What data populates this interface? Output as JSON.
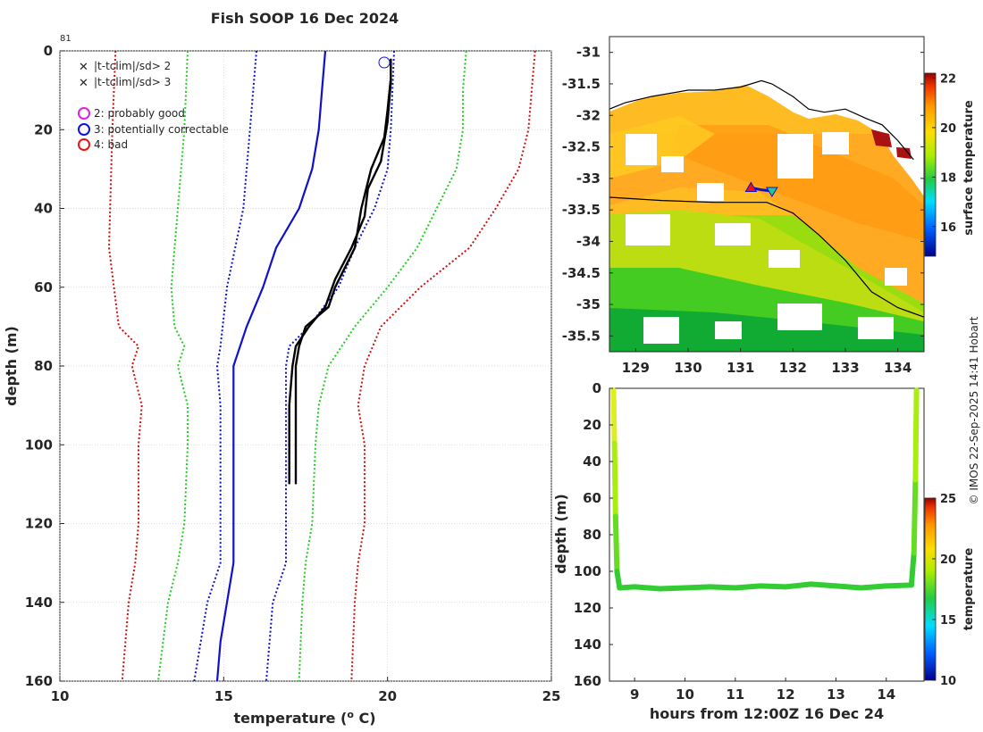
{
  "figure": {
    "title": "Fish SOOP 16 Dec 2024",
    "profile_count": "81",
    "credit": "© IMOS 22-Sep-2025 14:41 Hobart"
  },
  "chart_data": [
    {
      "id": "profile",
      "type": "line",
      "title": "Fish SOOP 16 Dec 2024",
      "xlabel": "temperature (",
      "xlabel_sup": "o",
      "xlabel_end": " C)",
      "ylabel": "depth (m)",
      "xlim": [
        10,
        25
      ],
      "ylim": [
        160,
        0
      ],
      "xticks": [
        "10",
        "15",
        "20",
        "25"
      ],
      "yticks": [
        "0",
        "20",
        "40",
        "60",
        "80",
        "100",
        "120",
        "140",
        "160"
      ],
      "xtick_values": [
        10,
        15,
        20,
        25
      ],
      "ytick_values": [
        0,
        20,
        40,
        60,
        80,
        100,
        120,
        140,
        160
      ],
      "grid": true,
      "legend": [
        {
          "label": "|t-tclim|/sd> 2",
          "marker": "x",
          "color": "#22dd22"
        },
        {
          "label": "|t-tclim|/sd> 3",
          "marker": "x",
          "color": "#dd1111"
        },
        {
          "label": "2: probably good",
          "marker": "o",
          "color": "#dd22dd"
        },
        {
          "label": "3: potentially correctable",
          "marker": "o",
          "color": "#1111dd"
        },
        {
          "label": "4: bad",
          "marker": "o",
          "color": "#ee1111"
        }
      ],
      "series": [
        {
          "name": "clim -3sd",
          "color": "#cc1111",
          "style": "dotted",
          "points": [
            [
              11.7,
              0
            ],
            [
              11.6,
              20
            ],
            [
              11.5,
              50
            ],
            [
              11.8,
              70
            ],
            [
              12.4,
              75
            ],
            [
              12.2,
              80
            ],
            [
              12.5,
              90
            ],
            [
              12.4,
              100
            ],
            [
              12.4,
              120
            ],
            [
              12.3,
              130
            ],
            [
              12.1,
              140
            ],
            [
              11.9,
              160
            ]
          ]
        },
        {
          "name": "clim -2sd",
          "color": "#22cc22",
          "style": "dotted",
          "points": [
            [
              13.9,
              0
            ],
            [
              13.8,
              20
            ],
            [
              13.6,
              40
            ],
            [
              13.4,
              60
            ],
            [
              13.5,
              70
            ],
            [
              13.8,
              75
            ],
            [
              13.6,
              80
            ],
            [
              13.9,
              90
            ],
            [
              13.9,
              100
            ],
            [
              13.8,
              120
            ],
            [
              13.6,
              130
            ],
            [
              13.3,
              140
            ],
            [
              13.0,
              160
            ]
          ]
        },
        {
          "name": "clim -1sd",
          "color": "#1111cc",
          "style": "dotted",
          "points": [
            [
              16.0,
              0
            ],
            [
              15.8,
              20
            ],
            [
              15.6,
              40
            ],
            [
              15.1,
              60
            ],
            [
              14.9,
              75
            ],
            [
              14.8,
              80
            ],
            [
              14.9,
              90
            ],
            [
              14.9,
              100
            ],
            [
              14.9,
              130
            ],
            [
              14.5,
              140
            ],
            [
              14.1,
              160
            ]
          ]
        },
        {
          "name": "clim mean",
          "color": "#1111cc",
          "style": "solid",
          "points": [
            [
              18.1,
              0
            ],
            [
              18.0,
              10
            ],
            [
              17.9,
              20
            ],
            [
              17.7,
              30
            ],
            [
              17.3,
              40
            ],
            [
              16.6,
              50
            ],
            [
              16.2,
              60
            ],
            [
              15.7,
              70
            ],
            [
              15.3,
              80
            ],
            [
              15.3,
              120
            ],
            [
              15.3,
              130
            ],
            [
              15.1,
              140
            ],
            [
              14.9,
              150
            ],
            [
              14.8,
              160
            ]
          ]
        },
        {
          "name": "clim +1sd",
          "color": "#1111cc",
          "style": "dotted",
          "points": [
            [
              20.2,
              0
            ],
            [
              20.1,
              20
            ],
            [
              20.0,
              30
            ],
            [
              19.6,
              40
            ],
            [
              19.0,
              50
            ],
            [
              18.5,
              60
            ],
            [
              17.6,
              70
            ],
            [
              17.0,
              75
            ],
            [
              16.9,
              80
            ],
            [
              16.9,
              100
            ],
            [
              16.9,
              130
            ],
            [
              16.5,
              140
            ],
            [
              16.3,
              160
            ]
          ]
        },
        {
          "name": "clim +2sd",
          "color": "#22cc22",
          "style": "dotted",
          "points": [
            [
              22.4,
              0
            ],
            [
              22.3,
              10
            ],
            [
              22.3,
              20
            ],
            [
              22.1,
              30
            ],
            [
              21.5,
              40
            ],
            [
              20.9,
              50
            ],
            [
              20.0,
              60
            ],
            [
              19.0,
              70
            ],
            [
              18.2,
              80
            ],
            [
              17.9,
              90
            ],
            [
              17.8,
              100
            ],
            [
              17.7,
              120
            ],
            [
              17.5,
              130
            ],
            [
              17.4,
              140
            ],
            [
              17.3,
              160
            ]
          ]
        },
        {
          "name": "clim +3sd",
          "color": "#cc1111",
          "style": "dotted",
          "points": [
            [
              24.5,
              0
            ],
            [
              24.4,
              10
            ],
            [
              24.3,
              20
            ],
            [
              24.0,
              30
            ],
            [
              23.3,
              40
            ],
            [
              22.5,
              50
            ],
            [
              21.0,
              60
            ],
            [
              19.8,
              70
            ],
            [
              19.3,
              80
            ],
            [
              19.1,
              90
            ],
            [
              19.3,
              100
            ],
            [
              19.3,
              120
            ],
            [
              19.1,
              130
            ],
            [
              19.0,
              140
            ],
            [
              18.9,
              160
            ]
          ]
        },
        {
          "name": "profile down",
          "color": "#000000",
          "style": "solid",
          "points": [
            [
              20.1,
              7
            ],
            [
              20.0,
              15
            ],
            [
              19.9,
              22
            ],
            [
              19.5,
              30
            ],
            [
              19.2,
              40
            ],
            [
              19.1,
              45
            ],
            [
              19.0,
              50
            ],
            [
              18.4,
              60
            ],
            [
              18.2,
              65
            ],
            [
              17.5,
              70
            ],
            [
              17.3,
              75
            ],
            [
              17.2,
              80
            ],
            [
              17.2,
              90
            ],
            [
              17.2,
              100
            ],
            [
              17.2,
              110
            ]
          ]
        },
        {
          "name": "profile up",
          "color": "#000000",
          "style": "solid",
          "points": [
            [
              17.0,
              110
            ],
            [
              17.0,
              100
            ],
            [
              17.0,
              90
            ],
            [
              17.1,
              80
            ],
            [
              17.2,
              75
            ],
            [
              17.6,
              70
            ],
            [
              18.1,
              65
            ],
            [
              18.4,
              58
            ],
            [
              18.9,
              50
            ],
            [
              19.3,
              42
            ],
            [
              19.4,
              35
            ],
            [
              19.8,
              28
            ],
            [
              20.0,
              18
            ],
            [
              20.1,
              8
            ],
            [
              20.1,
              2
            ]
          ]
        }
      ]
    },
    {
      "id": "sst-map",
      "type": "heatmap",
      "xlim": [
        128.5,
        134.5
      ],
      "ylim": [
        -35.75,
        -30.75
      ],
      "xticks": [
        "129",
        "130",
        "131",
        "132",
        "133",
        "134"
      ],
      "yticks": [
        "-31",
        "-31.5",
        "-32",
        "-32.5",
        "-33",
        "-33.5",
        "-34",
        "-34.5",
        "-35",
        "-35.5"
      ],
      "xtick_values": [
        129,
        130,
        131,
        132,
        133,
        134
      ],
      "ytick_values": [
        -31,
        -31.5,
        -32,
        -32.5,
        -33,
        -33.5,
        -34,
        -34.5,
        -35,
        -35.5
      ],
      "colorbar": {
        "label": "surface temperature",
        "range": [
          14.8,
          22.2
        ],
        "ticks": [
          "16",
          "18",
          "20",
          "22"
        ],
        "tick_values": [
          16,
          18,
          20,
          22
        ]
      },
      "coastline": [
        [
          128.5,
          -31.9
        ],
        [
          128.8,
          -31.8
        ],
        [
          129.3,
          -31.7
        ],
        [
          130.0,
          -31.6
        ],
        [
          130.5,
          -31.6
        ],
        [
          131.0,
          -31.55
        ],
        [
          131.4,
          -31.45
        ],
        [
          131.6,
          -31.5
        ],
        [
          132.0,
          -31.7
        ],
        [
          132.3,
          -31.9
        ],
        [
          132.6,
          -31.95
        ],
        [
          133.0,
          -31.9
        ],
        [
          133.4,
          -32.05
        ],
        [
          133.7,
          -32.15
        ],
        [
          134.0,
          -32.4
        ],
        [
          134.2,
          -32.6
        ],
        [
          134.3,
          -32.7
        ]
      ],
      "track": [
        [
          131.2,
          -33.15
        ],
        [
          131.4,
          -33.18
        ],
        [
          131.6,
          -33.2
        ]
      ],
      "front": [
        [
          128.5,
          -33.3
        ],
        [
          129.5,
          -33.35
        ],
        [
          130.5,
          -33.38
        ],
        [
          131.5,
          -33.38
        ],
        [
          132.0,
          -33.55
        ],
        [
          132.5,
          -33.9
        ],
        [
          133.0,
          -34.3
        ],
        [
          133.5,
          -34.8
        ],
        [
          134.0,
          -35.05
        ],
        [
          134.5,
          -35.2
        ]
      ]
    },
    {
      "id": "depth-time",
      "type": "scatter",
      "xlabel": "hours from 12:00Z 16 Dec 24",
      "ylabel": "depth (m)",
      "xlim": [
        8.5,
        14.75
      ],
      "ylim": [
        160,
        0
      ],
      "xticks": [
        "9",
        "10",
        "11",
        "12",
        "13",
        "14"
      ],
      "yticks": [
        "0",
        "20",
        "40",
        "60",
        "80",
        "100",
        "120",
        "140",
        "160"
      ],
      "xtick_values": [
        9,
        10,
        11,
        12,
        13,
        14
      ],
      "ytick_values": [
        0,
        20,
        40,
        60,
        80,
        100,
        120,
        140,
        160
      ],
      "colorbar": {
        "label": "temperature",
        "range": [
          10,
          25
        ],
        "ticks": [
          "10",
          "15",
          "20",
          "25"
        ],
        "tick_values": [
          10,
          15,
          20,
          25
        ]
      },
      "track": [
        [
          8.58,
          1
        ],
        [
          8.6,
          30
        ],
        [
          8.62,
          70
        ],
        [
          8.65,
          100
        ],
        [
          8.7,
          109
        ],
        [
          9.0,
          108.5
        ],
        [
          9.5,
          109.5
        ],
        [
          10.0,
          109
        ],
        [
          10.5,
          108.5
        ],
        [
          11.0,
          109
        ],
        [
          11.5,
          108
        ],
        [
          12.0,
          108.5
        ],
        [
          12.5,
          107
        ],
        [
          13.0,
          108
        ],
        [
          13.5,
          109
        ],
        [
          14.0,
          108
        ],
        [
          14.5,
          107.5
        ],
        [
          14.55,
          90
        ],
        [
          14.58,
          50
        ],
        [
          14.6,
          1
        ]
      ]
    }
  ]
}
